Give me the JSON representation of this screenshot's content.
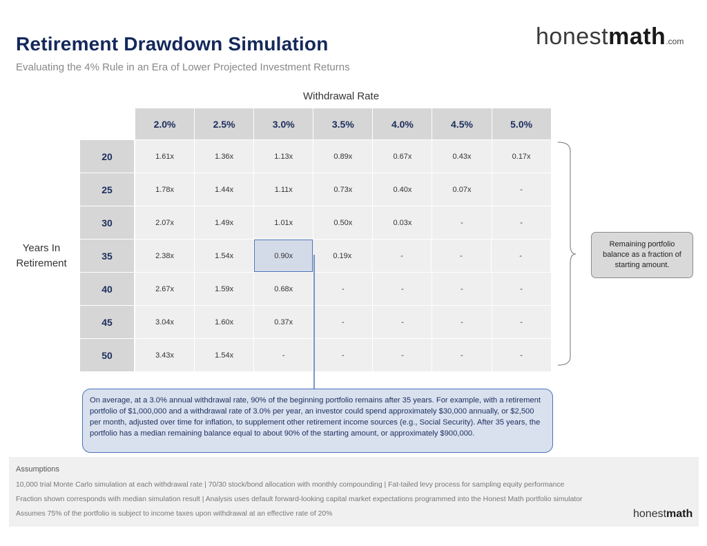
{
  "header": {
    "title": "Retirement Drawdown Simulation",
    "subtitle": "Evaluating the 4% Rule in an Era of Lower Projected Investment Returns"
  },
  "logo": {
    "light": "honest",
    "bold": "math",
    "domain": ".com"
  },
  "chart_data": {
    "type": "table",
    "xlabel": "Withdrawal Rate",
    "ylabel": "Years In Retirement",
    "columns": [
      "2.0%",
      "2.5%",
      "3.0%",
      "3.5%",
      "4.0%",
      "4.5%",
      "5.0%"
    ],
    "rows": [
      {
        "label": "20",
        "values": [
          "1.61x",
          "1.36x",
          "1.13x",
          "0.89x",
          "0.67x",
          "0.43x",
          "0.17x"
        ]
      },
      {
        "label": "25",
        "values": [
          "1.78x",
          "1.44x",
          "1.11x",
          "0.73x",
          "0.40x",
          "0.07x",
          "-"
        ]
      },
      {
        "label": "30",
        "values": [
          "2.07x",
          "1.49x",
          "1.01x",
          "0.50x",
          "0.03x",
          "-",
          "-"
        ]
      },
      {
        "label": "35",
        "values": [
          "2.38x",
          "1.54x",
          "0.90x",
          "0.19x",
          "-",
          "-",
          "-"
        ]
      },
      {
        "label": "40",
        "values": [
          "2.67x",
          "1.59x",
          "0.68x",
          "-",
          "-",
          "-",
          "-"
        ]
      },
      {
        "label": "45",
        "values": [
          "3.04x",
          "1.60x",
          "0.37x",
          "-",
          "-",
          "-",
          "-"
        ]
      },
      {
        "label": "50",
        "values": [
          "3.43x",
          "1.54x",
          "-",
          "-",
          "-",
          "-",
          "-"
        ]
      }
    ],
    "highlight": {
      "row": "35",
      "column": "3.0%"
    }
  },
  "callouts": {
    "right": "Remaining portfolio balance as a fraction of starting amount.",
    "bottom": "On average, at a 3.0% annual withdrawal rate, 90% of the beginning portfolio remains after 35 years. For example, with a retirement portfolio of $1,000,000 and a withdrawal rate of 3.0% per year, an investor could spend approximately $30,000 annually, or $2,500 per month, adjusted over time for inflation, to supplement other retirement income sources (e.g., Social Security). After 35 years, the portfolio has a median remaining balance equal to about 90% of the starting amount, or approximately $900,000."
  },
  "assumptions": {
    "title": "Assumptions",
    "lines": [
      "10,000 trial Monte Carlo simulation at each withdrawal rate | 70/30 stock/bond allocation with monthly compounding | Fat-tailed levy process for sampling equity performance",
      "Fraction shown corresponds with median simulation result | Analysis uses default forward-looking capital market expectations programmed into the Honest Math portfolio simulator",
      "Assumes 75% of the portfolio is subject to income taxes upon withdrawal at an effective rate of 20%"
    ]
  },
  "footer_logo": {
    "light": "honest",
    "bold": "math"
  },
  "colors": {
    "title": "#14285a",
    "highlight_border": "#4a72b8",
    "highlight_fill": "#d4dbe8"
  }
}
